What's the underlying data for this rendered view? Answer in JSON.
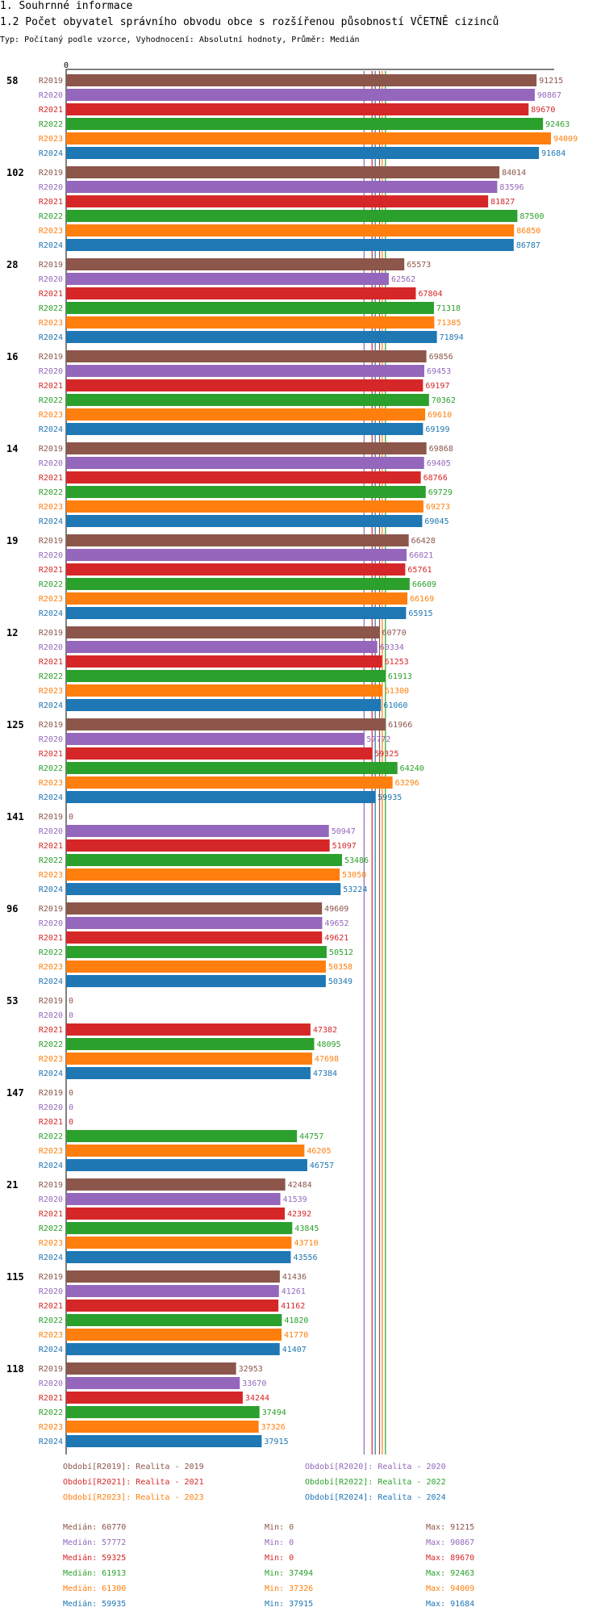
{
  "header": {
    "title1": "1. Souhrnné informace",
    "title2": "1.2 Počet obyvatel správního obvodu obce s rozšířenou působností VČETNĚ cizinců",
    "subtitle": "Typ: Počítaný podle vzorce, Vyhodnocení: Absolutní hodnoty, Průměr: Medián"
  },
  "chart_data": {
    "type": "bar",
    "orientation": "horizontal",
    "axis_zero_label": "0",
    "xlim": [
      0,
      94009
    ],
    "series": [
      {
        "key": "R2019",
        "color": "#8c564b"
      },
      {
        "key": "R2020",
        "color": "#9467bd"
      },
      {
        "key": "R2021",
        "color": "#d62728"
      },
      {
        "key": "R2022",
        "color": "#2ca02c"
      },
      {
        "key": "R2023",
        "color": "#ff7f0e"
      },
      {
        "key": "R2024",
        "color": "#1f77b4"
      }
    ],
    "groups": [
      {
        "label": "58",
        "values": [
          91215,
          90867,
          89670,
          92463,
          94009,
          91684
        ]
      },
      {
        "label": "102",
        "values": [
          84014,
          83596,
          81827,
          87500,
          86850,
          86787
        ]
      },
      {
        "label": "28",
        "values": [
          65573,
          62562,
          67804,
          71318,
          71385,
          71894
        ]
      },
      {
        "label": "16",
        "values": [
          69856,
          69453,
          69197,
          70362,
          69610,
          69199
        ]
      },
      {
        "label": "14",
        "values": [
          69868,
          69405,
          68766,
          69729,
          69273,
          69045
        ]
      },
      {
        "label": "19",
        "values": [
          66428,
          66021,
          65761,
          66609,
          66169,
          65915
        ]
      },
      {
        "label": "12",
        "values": [
          60770,
          60334,
          61253,
          61913,
          61300,
          61060
        ]
      },
      {
        "label": "125",
        "values": [
          61966,
          57772,
          59325,
          64240,
          63296,
          59935
        ]
      },
      {
        "label": "141",
        "values": [
          0,
          50947,
          51097,
          53486,
          53050,
          53224
        ]
      },
      {
        "label": "96",
        "values": [
          49609,
          49652,
          49621,
          50512,
          50358,
          50349
        ]
      },
      {
        "label": "53",
        "values": [
          0,
          0,
          47382,
          48095,
          47698,
          47384
        ]
      },
      {
        "label": "147",
        "values": [
          0,
          0,
          0,
          44757,
          46205,
          46757
        ]
      },
      {
        "label": "21",
        "values": [
          42484,
          41539,
          42392,
          43845,
          43710,
          43556
        ]
      },
      {
        "label": "115",
        "values": [
          41436,
          41261,
          41162,
          41820,
          41770,
          41407
        ]
      },
      {
        "label": "118",
        "values": [
          32953,
          33670,
          34244,
          37494,
          37326,
          37915
        ]
      }
    ],
    "median_lines": [
      60770,
      57772,
      59325,
      61913,
      61300,
      59935
    ],
    "legend": [
      "Období[R2019]: Realita - 2019",
      "Období[R2020]: Realita - 2020",
      "Období[R2021]: Realita - 2021",
      "Období[R2022]: Realita - 2022",
      "Období[R2023]: Realita - 2023",
      "Období[R2024]: Realita - 2024"
    ],
    "stats": [
      {
        "median": "Medián: 60770",
        "min": "Min: 0",
        "max": "Max: 91215"
      },
      {
        "median": "Medián: 57772",
        "min": "Min: 0",
        "max": "Max: 90867"
      },
      {
        "median": "Medián: 59325",
        "min": "Min: 0",
        "max": "Max: 89670"
      },
      {
        "median": "Medián: 61913",
        "min": "Min: 37494",
        "max": "Max: 92463"
      },
      {
        "median": "Medián: 61300",
        "min": "Min: 37326",
        "max": "Max: 94009"
      },
      {
        "median": "Medián: 59935",
        "min": "Min: 37915",
        "max": "Max: 91684"
      }
    ]
  }
}
